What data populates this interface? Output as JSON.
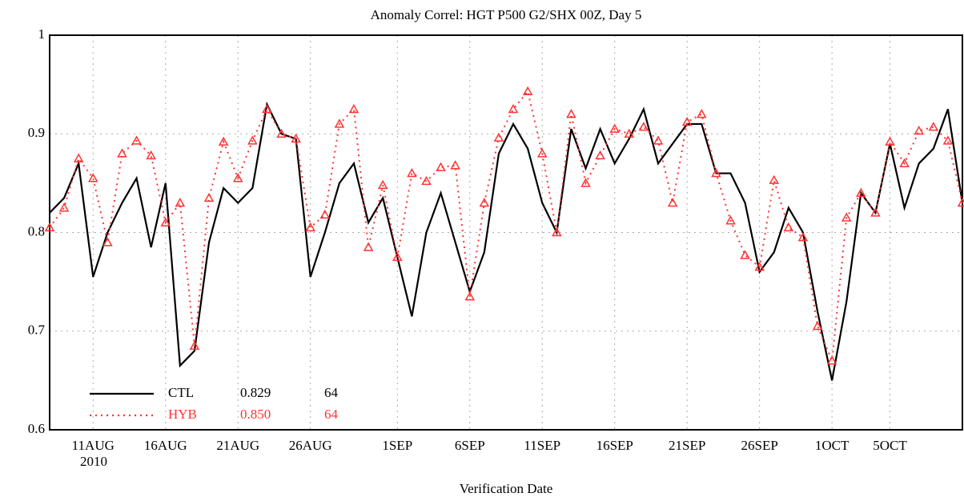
{
  "chart_data": {
    "type": "line",
    "title": "Anomaly Correl: HGT P500 G2/SHX 00Z, Day 5",
    "x_label": "Verification Date",
    "year_label": "2010",
    "categories": [
      null,
      null,
      null,
      "11AUG",
      null,
      null,
      null,
      null,
      "16AUG",
      null,
      null,
      null,
      null,
      "21AUG",
      null,
      null,
      null,
      null,
      "26AUG",
      null,
      null,
      null,
      null,
      null,
      "1SEP",
      null,
      null,
      null,
      null,
      "6SEP",
      null,
      null,
      null,
      null,
      "11SEP",
      null,
      null,
      null,
      null,
      "16SEP",
      null,
      null,
      null,
      null,
      "21SEP",
      null,
      null,
      null,
      null,
      "26SEP",
      null,
      null,
      null,
      null,
      "1OCT",
      null,
      null,
      null,
      "5OCT",
      null,
      null,
      null,
      null,
      null
    ],
    "series": [
      {
        "name": "CTL",
        "score": "0.829",
        "count": 64,
        "color": "#000000",
        "style": "solid",
        "values": [
          0.82,
          0.835,
          0.87,
          0.755,
          0.8,
          0.83,
          0.855,
          0.785,
          0.85,
          0.665,
          0.68,
          0.79,
          0.845,
          0.83,
          0.845,
          0.93,
          0.9,
          0.895,
          0.755,
          0.8,
          0.85,
          0.87,
          0.81,
          0.835,
          0.775,
          0.715,
          0.8,
          0.84,
          0.79,
          0.74,
          0.78,
          0.88,
          0.91,
          0.885,
          0.83,
          0.8,
          0.905,
          0.865,
          0.905,
          0.87,
          0.895,
          0.925,
          0.87,
          0.89,
          0.91,
          0.91,
          0.86,
          0.86,
          0.83,
          0.76,
          0.78,
          0.825,
          0.8,
          0.72,
          0.65,
          0.73,
          0.84,
          0.82,
          0.89,
          0.825,
          0.87,
          0.885,
          0.925,
          0.83
        ]
      },
      {
        "name": "HYB",
        "score": "0.850",
        "count": 64,
        "color": "#ff3333",
        "style": "dotted",
        "marker": "triangle",
        "values": [
          0.805,
          0.825,
          0.875,
          0.855,
          0.79,
          0.88,
          0.893,
          0.878,
          0.81,
          0.83,
          0.685,
          0.835,
          0.892,
          0.855,
          0.893,
          0.925,
          0.9,
          0.895,
          0.805,
          0.818,
          0.91,
          0.925,
          0.785,
          0.848,
          0.775,
          0.86,
          0.852,
          0.866,
          0.868,
          0.735,
          0.83,
          0.896,
          0.925,
          0.943,
          0.88,
          0.8,
          0.92,
          0.85,
          0.878,
          0.905,
          0.9,
          0.907,
          0.893,
          0.83,
          0.912,
          0.92,
          0.86,
          0.812,
          0.777,
          0.765,
          0.853,
          0.805,
          0.795,
          0.705,
          0.67,
          0.815,
          0.84,
          0.82,
          0.892,
          0.87,
          0.903,
          0.907,
          0.893,
          0.83
        ]
      }
    ],
    "ylim": [
      0.6,
      1
    ],
    "yticks": [
      0.6,
      0.7,
      0.8,
      0.9,
      1
    ],
    "grid": true
  }
}
